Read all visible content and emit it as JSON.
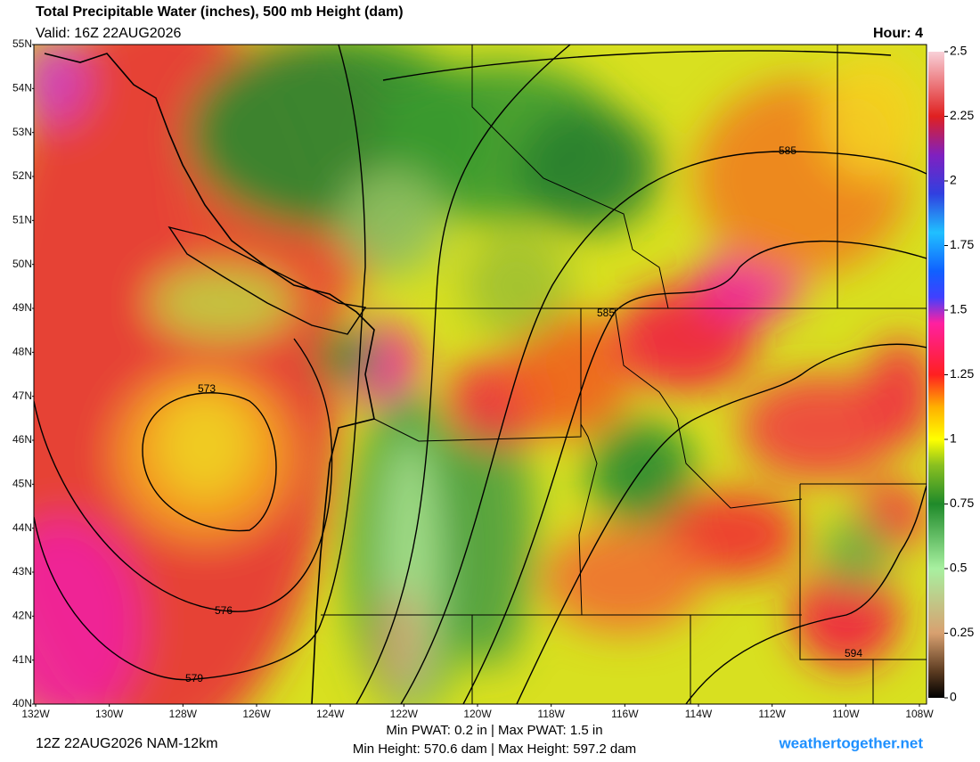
{
  "header": {
    "title": "Total Precipitable Water (inches), 500 mb Height (dam)",
    "valid": "Valid: 16Z 22AUG2026",
    "hour": "Hour: 4"
  },
  "map": {
    "lat_labels": [
      "55N",
      "54N",
      "53N",
      "52N",
      "51N",
      "50N",
      "49N",
      "48N",
      "47N",
      "46N",
      "45N",
      "44N",
      "43N",
      "42N",
      "41N",
      "40N"
    ],
    "lon_labels": [
      "132W",
      "130W",
      "128W",
      "126W",
      "124W",
      "122W",
      "120W",
      "118W",
      "116W",
      "114W",
      "112W",
      "110W",
      "108W"
    ],
    "contour_labels": [
      "573",
      "576",
      "579",
      "585",
      "585",
      "594"
    ]
  },
  "colorbar": {
    "range": [
      0,
      2.5
    ],
    "ticks": [
      0,
      0.25,
      0.5,
      0.75,
      1,
      1.25,
      1.5,
      1.75,
      2,
      2.25,
      2.5
    ]
  },
  "footer": {
    "run": "12Z 22AUG2026 NAM-12km",
    "pwat": "Min PWAT:   0.2 in | Max PWAT:   1.5 in",
    "height": "Min Height: 570.6 dam | Max Height: 597.2 dam",
    "site": "weathertogether.net"
  }
}
